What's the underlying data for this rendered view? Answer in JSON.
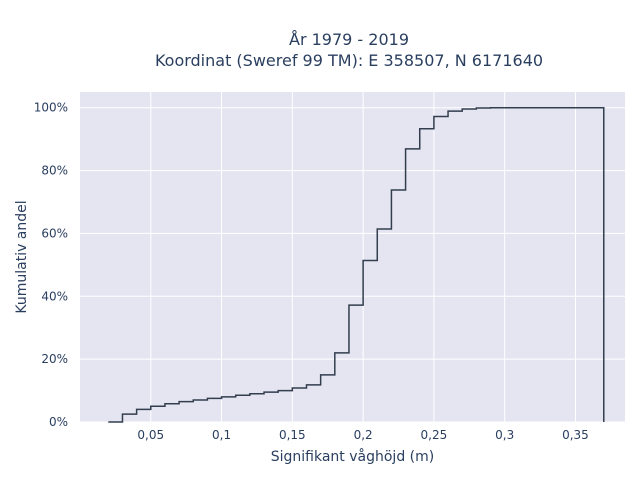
{
  "chart_data": {
    "type": "line",
    "subtype": "ecdf-step",
    "title": [
      "År 1979 - 2019",
      "Koordinat (Sweref 99 TM): E 358507, N 6171640"
    ],
    "xlabel": "Signifikant våghöjd (m)",
    "ylabel": "Kumulativ andel",
    "xlim": [
      0.0,
      0.385
    ],
    "ylim": [
      0,
      105
    ],
    "x_ticks": [
      0.05,
      0.1,
      0.15,
      0.2,
      0.25,
      0.3,
      0.35
    ],
    "x_tick_labels": [
      "0,05",
      "0,1",
      "0,15",
      "0,2",
      "0,25",
      "0,3",
      "0,35"
    ],
    "y_ticks": [
      0,
      20,
      40,
      60,
      80,
      100
    ],
    "y_tick_labels": [
      "0%",
      "20%",
      "40%",
      "60%",
      "80%",
      "100%"
    ],
    "grid": true,
    "background": "#e5e5f2",
    "line_color": "#323e4e",
    "series": [
      {
        "x": [
          0.02,
          0.03,
          0.04,
          0.05,
          0.06,
          0.07,
          0.08,
          0.09,
          0.1,
          0.11,
          0.12,
          0.13,
          0.14,
          0.15,
          0.16,
          0.17,
          0.18,
          0.19,
          0.2,
          0.21,
          0.22,
          0.23,
          0.24,
          0.25,
          0.26,
          0.27,
          0.28,
          0.29,
          0.3,
          0.37
        ],
        "y": [
          0.0,
          2.5,
          4.0,
          5.0,
          5.8,
          6.5,
          7.0,
          7.5,
          8.0,
          8.5,
          9.0,
          9.5,
          10.0,
          10.8,
          11.8,
          15.0,
          22.0,
          37.2,
          51.4,
          61.4,
          73.8,
          86.9,
          93.3,
          97.2,
          98.9,
          99.6,
          99.9,
          100.0,
          100.0,
          0.0
        ]
      }
    ]
  }
}
